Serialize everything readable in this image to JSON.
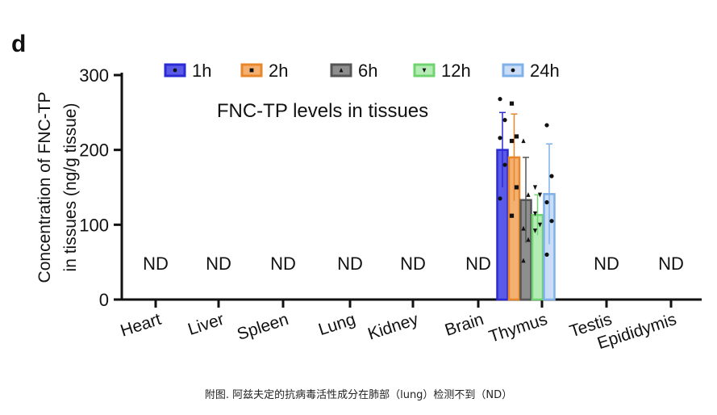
{
  "panel_label": "d",
  "caption": "附图. 阿兹夫定的抗病毒活性成分在肺部（lung）检测不到（ND）",
  "chart_data": {
    "type": "bar",
    "title": "FNC-TP levels in tissues",
    "ylabel_line1": "Concentration of  FNC-TP",
    "ylabel_line2": "in tissues (ng/g tissue)",
    "xlabel": "",
    "ylim": [
      0,
      300
    ],
    "yticks": [
      0,
      100,
      200,
      300
    ],
    "grid": false,
    "legend_position": "top",
    "categories": [
      "Heart",
      "Liver",
      "Spleen",
      "Lung",
      "Kidney",
      "Brain",
      "Thymus",
      "Testis",
      "Epididymis"
    ],
    "not_detected_label": "ND",
    "not_detected": [
      true,
      true,
      true,
      true,
      true,
      true,
      false,
      true,
      true
    ],
    "series": [
      {
        "name": "1h",
        "color": "#2b2bd6",
        "fill": "#5a5ae8",
        "marker": "circle",
        "values": [
          null,
          null,
          null,
          null,
          null,
          null,
          200,
          null,
          null
        ],
        "error": [
          null,
          null,
          null,
          null,
          null,
          null,
          50,
          null,
          null
        ],
        "points": [
          268,
          240,
          216,
          180,
          135
        ]
      },
      {
        "name": "2h",
        "color": "#e8862a",
        "fill": "#f3b070",
        "marker": "square",
        "values": [
          null,
          null,
          null,
          null,
          null,
          null,
          190,
          null,
          null
        ],
        "error": [
          null,
          null,
          null,
          null,
          null,
          null,
          58,
          null,
          null
        ],
        "points": [
          262,
          218,
          212,
          150,
          112
        ]
      },
      {
        "name": "6h",
        "color": "#555555",
        "fill": "#8e8e8e",
        "marker": "triangle-up",
        "values": [
          null,
          null,
          null,
          null,
          null,
          null,
          133,
          null,
          null
        ],
        "error": [
          null,
          null,
          null,
          null,
          null,
          null,
          57,
          null,
          null
        ],
        "points": [
          212,
          140,
          95,
          80,
          52
        ]
      },
      {
        "name": "12h",
        "color": "#6fd46f",
        "fill": "#b5ecb5",
        "marker": "triangle-down",
        "values": [
          null,
          null,
          null,
          null,
          null,
          null,
          113,
          null,
          null
        ],
        "error": [
          null,
          null,
          null,
          null,
          null,
          null,
          27,
          null,
          null
        ],
        "points": [
          150,
          140,
          115,
          100,
          92
        ]
      },
      {
        "name": "24h",
        "color": "#7fb0e8",
        "fill": "#c9def6",
        "marker": "circle",
        "values": [
          null,
          null,
          null,
          null,
          null,
          null,
          141,
          null,
          null
        ],
        "error": [
          null,
          null,
          null,
          null,
          null,
          null,
          67,
          null,
          null
        ],
        "points": [
          233,
          165,
          130,
          105,
          60
        ]
      }
    ]
  }
}
